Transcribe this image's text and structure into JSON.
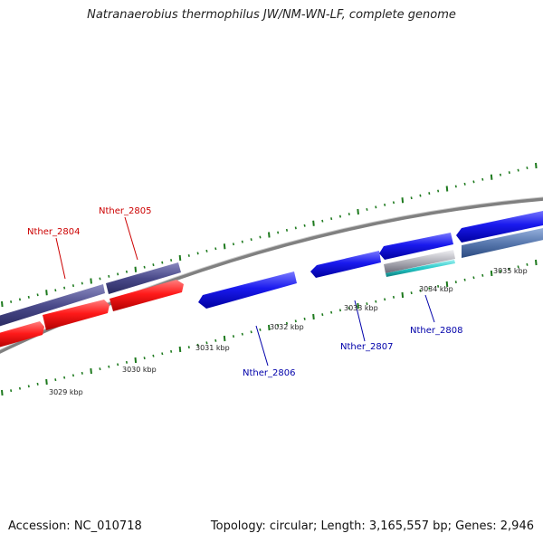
{
  "title": "Natranaerobius thermophilus JW/NM-WN-LF, complete genome",
  "footer": {
    "accession": "Accession: NC_010718",
    "topology": "Topology: circular; Length: 3,165,557 bp; Genes: 2,946"
  },
  "colors": {
    "backbone": "#808080",
    "tick": "#1e7a1e",
    "forward_red": "#ff1a1a",
    "reverse_label_red": "#cc0000",
    "gene_blue": "#1a1aee",
    "label_blue": "#0000aa",
    "dark_purple": "#4a4a8a",
    "steel_blue": "#5a7ab0",
    "cyan": "#22c8c8",
    "silver": "#b0b0b8"
  },
  "kbp_labels": [
    "3029 kbp",
    "3030 kbp",
    "3031 kbp",
    "3032 kbp",
    "3033 kbp",
    "3034 kbp",
    "3035 kbp"
  ],
  "gene_labels": [
    {
      "text": "Nther_2804",
      "color": "red"
    },
    {
      "text": "Nther_2805",
      "color": "red"
    },
    {
      "text": "Nther_2806",
      "color": "blue"
    },
    {
      "text": "Nther_2807",
      "color": "blue"
    },
    {
      "text": "Nther_2808",
      "color": "blue"
    }
  ]
}
